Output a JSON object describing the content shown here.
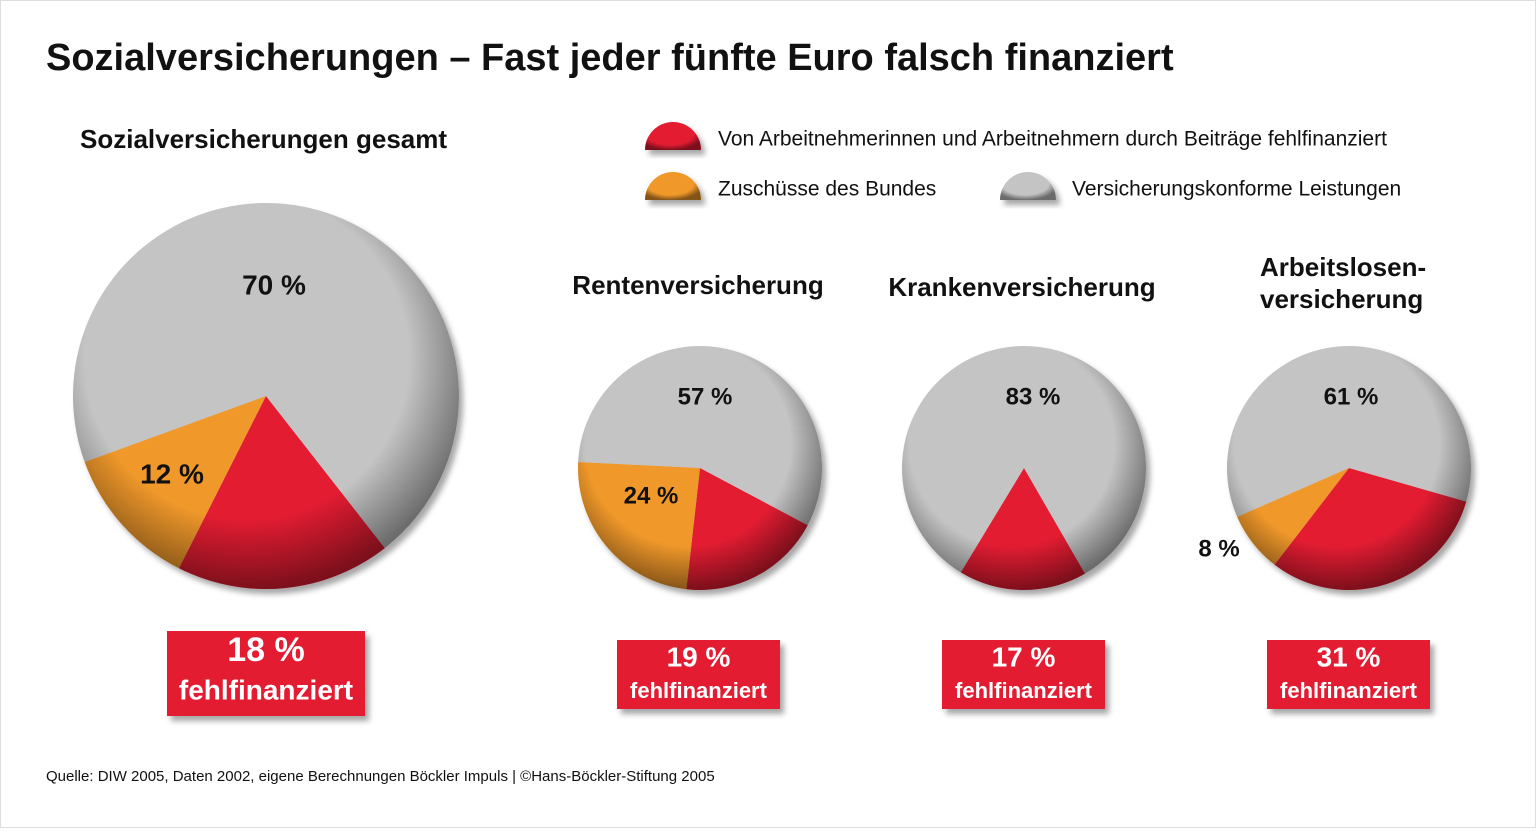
{
  "title": "Sozialversicherungen – Fast jeder fünfte Euro falsch finanziert",
  "legend": [
    {
      "name": "Von Arbeitnehmerinnen und Arbeitnehmern durch Beiträge fehlfinanziert",
      "color": "#e31e30"
    },
    {
      "name": "Zuschüsse des Bundes",
      "color": "#f0982a"
    },
    {
      "name": "Versicherungskonforme Leistungen",
      "color": "#c4c4c4"
    }
  ],
  "source": "Quelle: DIW 2005, Daten 2002, eigene Berechnungen Böckler Impuls | ©Hans-Böckler-Stiftung 2005",
  "chart_data": [
    {
      "type": "pie",
      "title": [
        "Sozialversicherungen gesamt"
      ],
      "values": [
        18,
        12,
        70
      ],
      "value_labels": [
        "18 %",
        "12 %",
        "70 %"
      ],
      "annotation": "fehlfinanziert"
    },
    {
      "type": "pie",
      "title": [
        "Rentenversicherung"
      ],
      "values": [
        19,
        24,
        57
      ],
      "value_labels": [
        "19 %",
        "24 %",
        "57 %"
      ],
      "annotation": "fehlfinanziert"
    },
    {
      "type": "pie",
      "title": [
        "Krankenversicherung"
      ],
      "values": [
        17,
        null,
        83
      ],
      "value_labels": [
        "17 %",
        null,
        "83 %"
      ],
      "annotation": "fehlfinanziert"
    },
    {
      "type": "pie",
      "title": [
        "Arbeitslosen-",
        "versicherung"
      ],
      "values": [
        31,
        8,
        61
      ],
      "value_labels": [
        "31 %",
        "8 %",
        "61 %"
      ],
      "annotation": "fehlfinanziert"
    }
  ]
}
